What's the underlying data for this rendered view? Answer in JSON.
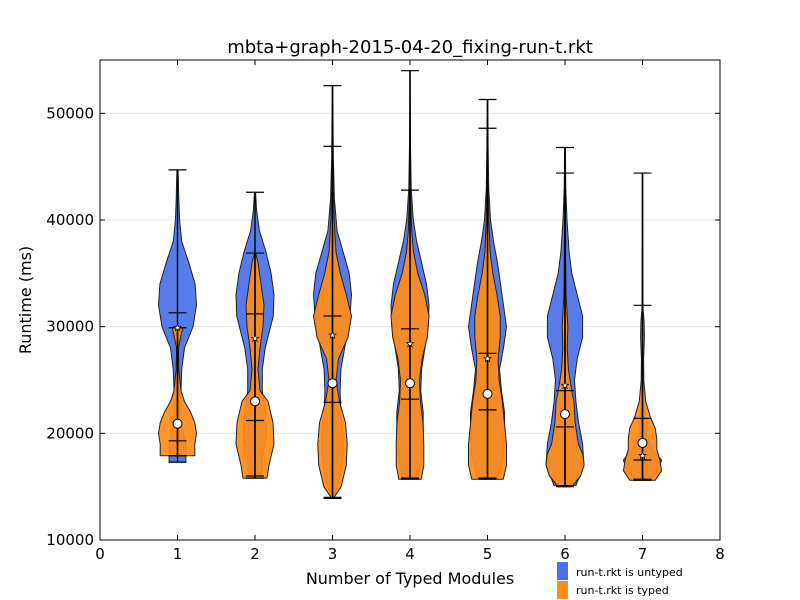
{
  "chart_data": {
    "type": "violin",
    "title": "mbta+graph-2015-04-20_fixing-run-t.rkt",
    "xlabel": "Number of Typed Modules",
    "ylabel": "Runtime (ms)",
    "xlim": [
      0,
      8
    ],
    "ylim": [
      10000,
      55000
    ],
    "x_ticks": [
      "0",
      "1",
      "2",
      "3",
      "4",
      "5",
      "6",
      "7",
      "8"
    ],
    "y_ticks": [
      "10000",
      "20000",
      "30000",
      "40000",
      "50000"
    ],
    "y_tick_values": [
      10000,
      20000,
      30000,
      40000,
      50000
    ],
    "grid": "horizontal",
    "legend_position": "below-right",
    "series": [
      {
        "name": "run-t.rkt is untyped",
        "color": "#4a72e8",
        "violins": [
          {
            "x": 1,
            "min": 17300,
            "max": 44700,
            "median": 29900,
            "mean": 31300,
            "profile": [
              [
                17300,
                1.2
              ],
              [
                19000,
                1.2
              ],
              [
                21000,
                0.5
              ],
              [
                24000,
                0.5
              ],
              [
                26000,
                0.6
              ],
              [
                28000,
                1.0
              ],
              [
                30000,
                2.2
              ],
              [
                32000,
                2.7
              ],
              [
                34000,
                2.5
              ],
              [
                36000,
                1.6
              ],
              [
                38000,
                0.6
              ],
              [
                40000,
                0.3
              ],
              [
                42000,
                0.18
              ],
              [
                44700,
                0.08
              ]
            ]
          },
          {
            "x": 2,
            "min": 16000,
            "max": 42600,
            "median": 28900,
            "mean": 31200,
            "profile": [
              [
                16000,
                0.9
              ],
              [
                18000,
                1.1
              ],
              [
                20000,
                1.6
              ],
              [
                22000,
                1.4
              ],
              [
                24000,
                1.0
              ],
              [
                26000,
                1.0
              ],
              [
                28000,
                1.4
              ],
              [
                31000,
                2.5
              ],
              [
                33000,
                2.6
              ],
              [
                35000,
                2.2
              ],
              [
                37000,
                1.5
              ],
              [
                39000,
                0.6
              ],
              [
                41000,
                0.2
              ],
              [
                42600,
                0.08
              ]
            ]
          },
          {
            "x": 3,
            "min": 14000,
            "max": 52600,
            "median": 29200,
            "mean": 31000,
            "profile": [
              [
                14000,
                0.2
              ],
              [
                16000,
                1.0
              ],
              [
                18000,
                1.4
              ],
              [
                20000,
                1.4
              ],
              [
                22000,
                1.1
              ],
              [
                24000,
                1.0
              ],
              [
                26000,
                1.1
              ],
              [
                28000,
                1.6
              ],
              [
                31000,
                2.3
              ],
              [
                33000,
                2.5
              ],
              [
                35000,
                2.2
              ],
              [
                37000,
                1.4
              ],
              [
                39000,
                0.6
              ],
              [
                42000,
                0.25
              ],
              [
                46000,
                0.1
              ],
              [
                52600,
                0.04
              ]
            ]
          },
          {
            "x": 4,
            "min": 15800,
            "max": 54000,
            "median": 28400,
            "mean": 29800,
            "profile": [
              [
                15800,
                0.9
              ],
              [
                18000,
                1.5
              ],
              [
                20000,
                1.6
              ],
              [
                22000,
                1.6
              ],
              [
                24000,
                1.3
              ],
              [
                26000,
                1.4
              ],
              [
                28000,
                1.8
              ],
              [
                30000,
                2.2
              ],
              [
                32000,
                2.3
              ],
              [
                34000,
                2.0
              ],
              [
                36000,
                1.4
              ],
              [
                38000,
                0.8
              ],
              [
                40000,
                0.4
              ],
              [
                43000,
                0.15
              ],
              [
                47000,
                0.06
              ],
              [
                54000,
                0.03
              ]
            ]
          },
          {
            "x": 5,
            "min": 15800,
            "max": 51300,
            "median": 27000,
            "mean": 27500,
            "profile": [
              [
                15800,
                1.0
              ],
              [
                18000,
                1.6
              ],
              [
                20000,
                1.7
              ],
              [
                22000,
                1.7
              ],
              [
                24000,
                1.4
              ],
              [
                26000,
                1.2
              ],
              [
                28000,
                1.6
              ],
              [
                30000,
                1.9
              ],
              [
                32000,
                1.6
              ],
              [
                34000,
                1.3
              ],
              [
                36000,
                1.0
              ],
              [
                38000,
                0.6
              ],
              [
                40000,
                0.3
              ],
              [
                43000,
                0.12
              ],
              [
                47000,
                0.06
              ],
              [
                51300,
                0.03
              ]
            ]
          },
          {
            "x": 6,
            "min": 15100,
            "max": 46800,
            "median": 24500,
            "mean": 24000,
            "profile": [
              [
                15100,
                0.8
              ],
              [
                17000,
                1.4
              ],
              [
                19000,
                1.3
              ],
              [
                21000,
                1.0
              ],
              [
                23000,
                0.8
              ],
              [
                25000,
                0.7
              ],
              [
                27000,
                0.9
              ],
              [
                29000,
                1.3
              ],
              [
                31000,
                1.3
              ],
              [
                33000,
                0.9
              ],
              [
                35000,
                0.5
              ],
              [
                37000,
                0.3
              ],
              [
                40000,
                0.15
              ],
              [
                43000,
                0.06
              ],
              [
                46800,
                0.03
              ]
            ]
          },
          {
            "x": 7,
            "min": 15700,
            "max": 44400,
            "median": 17900,
            "mean": 17500,
            "profile": [
              [
                15700,
                0.6
              ],
              [
                16500,
                1.1
              ],
              [
                17500,
                1.3
              ],
              [
                18500,
                0.7
              ],
              [
                20000,
                0.25
              ],
              [
                23000,
                0.08
              ],
              [
                28000,
                0.04
              ],
              [
                35000,
                0.03
              ],
              [
                44400,
                0.02
              ]
            ]
          }
        ]
      },
      {
        "name": "run-t.rkt is typed",
        "color": "#ff8c1a",
        "violins": [
          {
            "x": 1,
            "min": 17900,
            "max": 29900,
            "median": 20900,
            "mean": 19300,
            "profile": [
              [
                17900,
                2.0
              ],
              [
                19000,
                2.0
              ],
              [
                20000,
                2.2
              ],
              [
                21000,
                2.0
              ],
              [
                22000,
                1.5
              ],
              [
                23000,
                0.8
              ],
              [
                24000,
                0.4
              ],
              [
                26000,
                0.15
              ],
              [
                28000,
                0.1
              ],
              [
                29900,
                0.6
              ]
            ]
          },
          {
            "x": 2,
            "min": 15800,
            "max": 36900,
            "median": 23000,
            "mean": 21200,
            "profile": [
              [
                15800,
                1.2
              ],
              [
                17000,
                1.4
              ],
              [
                19000,
                1.9
              ],
              [
                21000,
                1.8
              ],
              [
                23000,
                1.3
              ],
              [
                24000,
                0.5
              ],
              [
                26000,
                0.3
              ],
              [
                28000,
                0.5
              ],
              [
                30000,
                0.8
              ],
              [
                32000,
                0.9
              ],
              [
                34000,
                0.6
              ],
              [
                36000,
                0.3
              ],
              [
                36900,
                0.05
              ]
            ]
          },
          {
            "x": 3,
            "min": 13900,
            "max": 46900,
            "median": 24700,
            "mean": 22900,
            "profile": [
              [
                13900,
                0.1
              ],
              [
                15000,
                1.0
              ],
              [
                17000,
                1.6
              ],
              [
                19000,
                1.7
              ],
              [
                21000,
                1.5
              ],
              [
                23000,
                0.8
              ],
              [
                25000,
                0.4
              ],
              [
                27000,
                0.7
              ],
              [
                29000,
                1.8
              ],
              [
                31000,
                2.2
              ],
              [
                33000,
                1.6
              ],
              [
                35000,
                0.9
              ],
              [
                37000,
                0.4
              ],
              [
                40000,
                0.2
              ],
              [
                43000,
                0.1
              ],
              [
                46900,
                0.04
              ]
            ]
          },
          {
            "x": 4,
            "min": 15700,
            "max": 42800,
            "median": 24700,
            "mean": 23200,
            "profile": [
              [
                15700,
                1.3
              ],
              [
                17000,
                1.6
              ],
              [
                19000,
                1.6
              ],
              [
                21000,
                1.5
              ],
              [
                23000,
                1.2
              ],
              [
                25000,
                1.1
              ],
              [
                27000,
                1.4
              ],
              [
                29000,
                2.0
              ],
              [
                31000,
                2.2
              ],
              [
                33000,
                1.7
              ],
              [
                35000,
                0.9
              ],
              [
                37000,
                0.4
              ],
              [
                39000,
                0.2
              ],
              [
                42800,
                0.05
              ]
            ]
          },
          {
            "x": 5,
            "min": 15700,
            "max": 48600,
            "median": 23700,
            "mean": 22200,
            "profile": [
              [
                15700,
                1.5
              ],
              [
                17000,
                1.8
              ],
              [
                19000,
                1.8
              ],
              [
                21000,
                1.6
              ],
              [
                23000,
                1.4
              ],
              [
                25000,
                1.1
              ],
              [
                27000,
                1.0
              ],
              [
                29000,
                1.2
              ],
              [
                31000,
                1.2
              ],
              [
                33000,
                0.9
              ],
              [
                35000,
                0.5
              ],
              [
                37000,
                0.25
              ],
              [
                40000,
                0.12
              ],
              [
                44000,
                0.05
              ],
              [
                48600,
                0.03
              ]
            ]
          },
          {
            "x": 6,
            "min": 15000,
            "max": 44400,
            "median": 21800,
            "mean": 20600,
            "profile": [
              [
                15000,
                0.6
              ],
              [
                16000,
                1.4
              ],
              [
                17000,
                1.7
              ],
              [
                18000,
                1.6
              ],
              [
                19000,
                1.2
              ],
              [
                21000,
                0.9
              ],
              [
                23000,
                0.8
              ],
              [
                24000,
                0.6
              ],
              [
                26000,
                0.3
              ],
              [
                28000,
                0.2
              ],
              [
                30000,
                0.25
              ],
              [
                33000,
                0.1
              ],
              [
                37000,
                0.05
              ],
              [
                44400,
                0.03
              ]
            ]
          },
          {
            "x": 7,
            "min": 15600,
            "max": 32000,
            "median": 19100,
            "mean": 21400,
            "profile": [
              [
                15600,
                0.8
              ],
              [
                16500,
                1.2
              ],
              [
                17500,
                1.1
              ],
              [
                18500,
                0.9
              ],
              [
                19500,
                0.9
              ],
              [
                20500,
                0.8
              ],
              [
                21500,
                0.5
              ],
              [
                23000,
                0.2
              ],
              [
                25000,
                0.08
              ],
              [
                27000,
                0.07
              ],
              [
                29000,
                0.12
              ],
              [
                30500,
                0.1
              ],
              [
                32000,
                0.02
              ]
            ]
          }
        ]
      }
    ]
  }
}
